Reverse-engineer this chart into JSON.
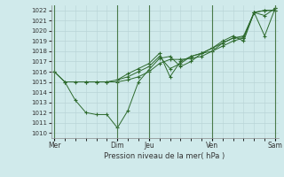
{
  "title": "Pression niveau de la mer( hPa )",
  "bg_color": "#d0eaeb",
  "grid_color": "#b8d4d6",
  "line_color": "#2d6a2d",
  "vline_color": "#4a7a4a",
  "yticks": [
    1010,
    1011,
    1012,
    1013,
    1014,
    1015,
    1016,
    1017,
    1018,
    1019,
    1020,
    1021,
    1022
  ],
  "ylim": [
    1009.5,
    1022.5
  ],
  "xlim": [
    -0.15,
    10.65
  ],
  "lines": [
    {
      "x": [
        0,
        0.5,
        1.0,
        1.5,
        2.0,
        2.5,
        3.0,
        3.5,
        4.0,
        4.5,
        5.0,
        5.5,
        6.0,
        6.5,
        7.0,
        7.5,
        8.0,
        8.5,
        9.0,
        9.5,
        10.0,
        10.5
      ],
      "y": [
        1016.0,
        1015.0,
        1013.2,
        1012.0,
        1011.8,
        1011.8,
        1010.5,
        1012.2,
        1015.0,
        1016.2,
        1017.3,
        1017.5,
        1016.5,
        1017.0,
        1017.8,
        1018.0,
        1018.8,
        1019.3,
        1019.3,
        1021.8,
        1022.0,
        1022.0
      ]
    },
    {
      "x": [
        0,
        0.5,
        1.0,
        1.5,
        2.0,
        2.5,
        3.0,
        3.5,
        4.0,
        4.5,
        5.0,
        5.5,
        6.0,
        6.5,
        7.0,
        7.5,
        8.0,
        8.5,
        9.0,
        9.5,
        10.0,
        10.5
      ],
      "y": [
        1016.0,
        1015.0,
        1015.0,
        1015.0,
        1015.0,
        1015.0,
        1015.0,
        1015.2,
        1015.5,
        1016.0,
        1016.8,
        1017.2,
        1017.2,
        1017.3,
        1017.5,
        1018.0,
        1018.5,
        1019.0,
        1019.3,
        1021.8,
        1022.0,
        1022.0
      ]
    },
    {
      "x": [
        1.5,
        2.0,
        2.5,
        3.0,
        3.5,
        4.0,
        4.5,
        5.0,
        5.5,
        6.0,
        6.5,
        7.0,
        7.5,
        8.0,
        8.5,
        9.0,
        9.5,
        10.0,
        10.5
      ],
      "y": [
        1015.0,
        1015.0,
        1015.0,
        1015.2,
        1015.5,
        1016.0,
        1016.5,
        1017.5,
        1016.3,
        1016.8,
        1017.5,
        1017.8,
        1018.3,
        1018.8,
        1019.3,
        1019.5,
        1021.8,
        1021.5,
        1022.2
      ]
    },
    {
      "x": [
        3.0,
        3.5,
        4.0,
        4.5,
        5.0,
        5.5,
        6.0,
        6.5,
        7.0,
        7.5,
        8.0,
        8.5,
        9.0,
        9.5,
        10.0,
        10.5
      ],
      "y": [
        1015.2,
        1015.8,
        1016.3,
        1016.8,
        1017.8,
        1015.5,
        1017.0,
        1017.5,
        1017.8,
        1018.3,
        1019.0,
        1019.5,
        1019.0,
        1021.8,
        1019.5,
        1022.2
      ]
    }
  ],
  "vlines": [
    0,
    3.0,
    4.5,
    7.5,
    10.5
  ],
  "xtick_positions": [
    0,
    3.0,
    4.5,
    7.5,
    10.5
  ],
  "xtick_labels": [
    "Mer",
    "Dim",
    "Jeu",
    "Ven",
    "Sam"
  ]
}
